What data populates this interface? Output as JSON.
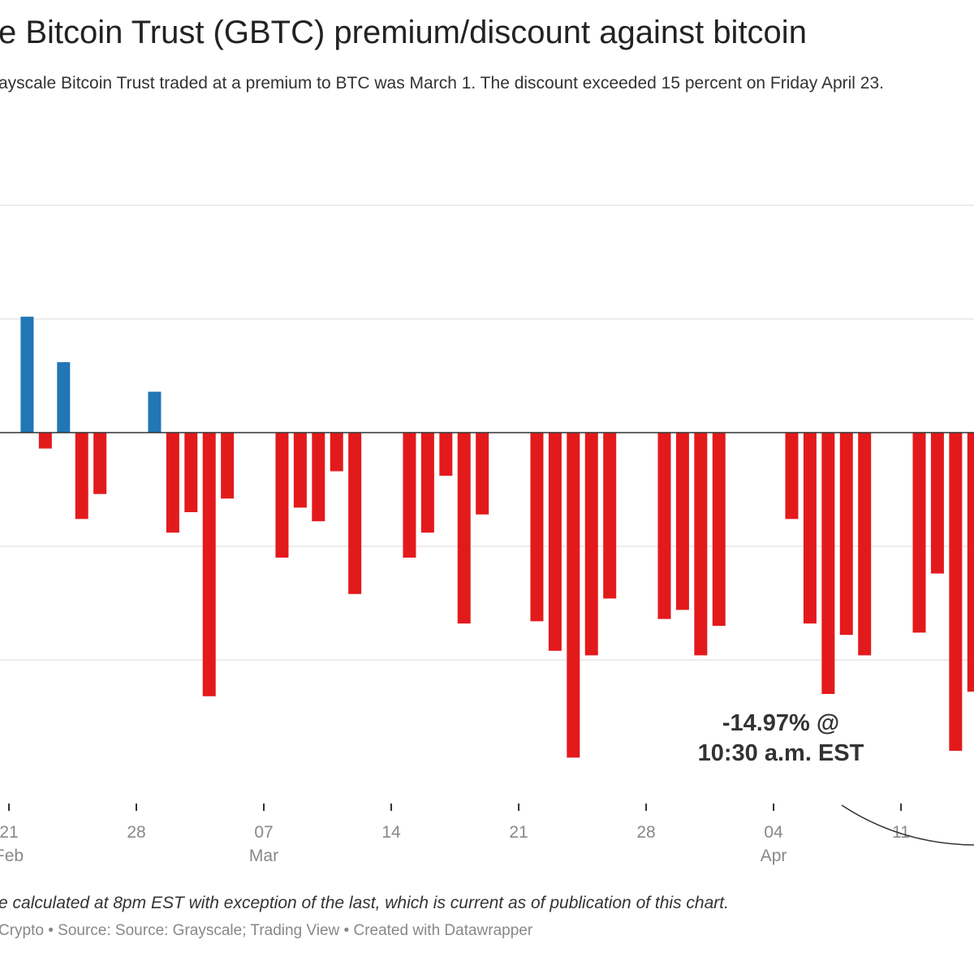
{
  "title": "e Bitcoin Trust (GBTC) premium/discount against bitcoin",
  "subtitle": "ayscale Bitcoin Trust traded at a premium to BTC was March 1. The discount exceeded 15 percent on Friday April 23.",
  "footnote": "e calculated at 8pm EST with exception of the last, which is current as of publication of this chart.",
  "source": "Crypto • Source: Source: Grayscale; Trading View • Created with Datawrapper",
  "colors": {
    "premium": "#2176b5",
    "discount": "#e31a1c",
    "grid": "#e6e6e6",
    "axis": "#333333"
  },
  "chart_data": {
    "type": "bar",
    "title": "",
    "xlabel": "",
    "ylabel": "",
    "ylim": [
      -15.2,
      10
    ],
    "y_gridlines": [
      10,
      5,
      0,
      -5,
      -10
    ],
    "grid": true,
    "x_ticks": [
      {
        "date": "2021-02-21",
        "label": "21",
        "month": "Feb"
      },
      {
        "date": "2021-02-28",
        "label": "28",
        "month": ""
      },
      {
        "date": "2021-03-07",
        "label": "07",
        "month": "Mar"
      },
      {
        "date": "2021-03-14",
        "label": "14",
        "month": ""
      },
      {
        "date": "2021-03-21",
        "label": "21",
        "month": ""
      },
      {
        "date": "2021-03-28",
        "label": "28",
        "month": ""
      },
      {
        "date": "2021-04-04",
        "label": "04",
        "month": "Apr"
      },
      {
        "date": "2021-04-11",
        "label": "11",
        "month": ""
      }
    ],
    "annotation": {
      "line1": "-14.97% @",
      "line2": "10:30 a.m. EST"
    },
    "x": [
      "2021-02-22",
      "2021-02-23",
      "2021-02-24",
      "2021-02-25",
      "2021-02-26",
      "2021-03-01",
      "2021-03-02",
      "2021-03-03",
      "2021-03-04",
      "2021-03-05",
      "2021-03-08",
      "2021-03-09",
      "2021-03-10",
      "2021-03-11",
      "2021-03-12",
      "2021-03-15",
      "2021-03-16",
      "2021-03-17",
      "2021-03-18",
      "2021-03-19",
      "2021-03-22",
      "2021-03-23",
      "2021-03-24",
      "2021-03-25",
      "2021-03-26",
      "2021-03-29",
      "2021-03-30",
      "2021-03-31",
      "2021-04-01",
      "2021-04-05",
      "2021-04-06",
      "2021-04-07",
      "2021-04-08",
      "2021-04-09",
      "2021-04-12",
      "2021-04-13",
      "2021-04-14",
      "2021-04-15"
    ],
    "values": [
      5.1,
      -0.7,
      3.1,
      -3.8,
      -2.7,
      1.8,
      -4.4,
      -3.5,
      -11.6,
      -2.9,
      -5.5,
      -3.3,
      -3.9,
      -1.7,
      -7.1,
      -5.5,
      -4.4,
      -1.9,
      -8.4,
      -3.6,
      -8.3,
      -9.6,
      -14.3,
      -9.8,
      -7.3,
      -8.2,
      -7.8,
      -9.8,
      -8.5,
      -3.8,
      -8.4,
      -11.5,
      -8.9,
      -9.8,
      -8.8,
      -6.2,
      -14.0,
      -11.4
    ]
  }
}
